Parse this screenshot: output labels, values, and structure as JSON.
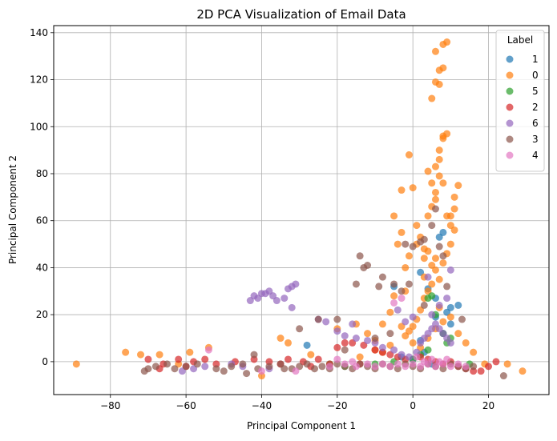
{
  "chart_data": {
    "type": "scatter",
    "title": "2D PCA Visualization of Email Data",
    "xlabel": "Principal Component 1",
    "ylabel": "Principal Component 2",
    "xlim": [
      -95,
      36
    ],
    "ylim": [
      -14,
      143
    ],
    "xticks": [
      -80,
      -60,
      -40,
      -20,
      0,
      20
    ],
    "yticks": [
      0,
      20,
      40,
      60,
      80,
      100,
      120,
      140
    ],
    "xtick_labels": [
      "−80",
      "−60",
      "−40",
      "−20",
      "0",
      "20"
    ],
    "ytick_labels": [
      "0",
      "20",
      "40",
      "60",
      "80",
      "100",
      "120",
      "140"
    ],
    "grid": true,
    "legend_title": "Label",
    "legend_position": "upper right",
    "series": [
      {
        "name": "1",
        "color": "#1f77b4",
        "points": [
          [
            -28,
            7
          ],
          [
            -5,
            32
          ],
          [
            2,
            38
          ],
          [
            4,
            31
          ],
          [
            7,
            53
          ],
          [
            8,
            55
          ],
          [
            6,
            19
          ],
          [
            9,
            21
          ],
          [
            10,
            23
          ],
          [
            12,
            24
          ],
          [
            -3,
            2
          ],
          [
            0,
            1
          ],
          [
            3,
            4
          ],
          [
            5,
            -1
          ],
          [
            2,
            9
          ],
          [
            8,
            12
          ],
          [
            10,
            16
          ],
          [
            6,
            27
          ]
        ]
      },
      {
        "name": "0",
        "color": "#ff7f0e",
        "points": [
          [
            -89,
            -1
          ],
          [
            -76,
            4
          ],
          [
            -72,
            3
          ],
          [
            -67,
            3
          ],
          [
            -54,
            6
          ],
          [
            -35,
            10
          ],
          [
            -33,
            8
          ],
          [
            -27,
            3
          ],
          [
            -20,
            14
          ],
          [
            -15,
            16
          ],
          [
            -12,
            12
          ],
          [
            -10,
            9
          ],
          [
            -8,
            16
          ],
          [
            -6,
            21
          ],
          [
            -5,
            28
          ],
          [
            -4,
            50
          ],
          [
            -3,
            55
          ],
          [
            -2,
            40
          ],
          [
            -1,
            45
          ],
          [
            -5,
            62
          ],
          [
            -3,
            73
          ],
          [
            -1,
            88
          ],
          [
            0,
            74
          ],
          [
            1,
            58
          ],
          [
            1,
            50
          ],
          [
            2,
            53
          ],
          [
            3,
            44
          ],
          [
            3,
            48
          ],
          [
            4,
            47
          ],
          [
            4,
            62
          ],
          [
            5,
            66
          ],
          [
            6,
            69
          ],
          [
            6,
            72
          ],
          [
            5,
            76
          ],
          [
            4,
            81
          ],
          [
            6,
            83
          ],
          [
            7,
            86
          ],
          [
            7,
            90
          ],
          [
            8,
            95
          ],
          [
            8,
            96
          ],
          [
            9,
            97
          ],
          [
            5,
            112
          ],
          [
            6,
            119
          ],
          [
            7,
            118
          ],
          [
            7,
            124
          ],
          [
            8,
            125
          ],
          [
            8,
            135
          ],
          [
            9,
            136
          ],
          [
            6,
            132
          ],
          [
            5,
            41
          ],
          [
            6,
            39
          ],
          [
            7,
            35
          ],
          [
            8,
            42
          ],
          [
            9,
            46
          ],
          [
            10,
            50
          ],
          [
            11,
            56
          ],
          [
            10,
            58
          ],
          [
            9,
            62
          ],
          [
            11,
            65
          ],
          [
            12,
            75
          ],
          [
            11,
            70
          ],
          [
            8,
            76
          ],
          [
            7,
            79
          ],
          [
            10,
            62
          ],
          [
            5,
            33
          ],
          [
            4,
            30
          ],
          [
            3,
            27
          ],
          [
            2,
            22
          ],
          [
            1,
            18
          ],
          [
            0,
            15
          ],
          [
            -1,
            13
          ],
          [
            -2,
            11
          ],
          [
            0,
            8
          ],
          [
            2,
            6
          ],
          [
            4,
            10
          ],
          [
            6,
            14
          ],
          [
            8,
            17
          ],
          [
            10,
            19
          ],
          [
            12,
            12
          ],
          [
            14,
            8
          ],
          [
            16,
            4
          ],
          [
            -2,
            30
          ],
          [
            -8,
            4
          ],
          [
            -14,
            2
          ],
          [
            19,
            -1
          ],
          [
            25,
            -1
          ],
          [
            29,
            -4
          ],
          [
            -59,
            4
          ],
          [
            -62,
            -1
          ],
          [
            -40,
            -6
          ],
          [
            -10,
            5
          ],
          [
            -6,
            7
          ],
          [
            3,
            36
          ],
          [
            6,
            44
          ],
          [
            -3,
            15
          ],
          [
            7,
            23
          ]
        ]
      },
      {
        "name": "5",
        "color": "#2ca02c",
        "points": [
          [
            -22,
            -1
          ],
          [
            -18,
            -2
          ],
          [
            -10,
            -1
          ],
          [
            0,
            1
          ],
          [
            2,
            3
          ],
          [
            4,
            27
          ],
          [
            5,
            28
          ],
          [
            6,
            20
          ],
          [
            8,
            12
          ],
          [
            9,
            8
          ],
          [
            10,
            10
          ],
          [
            4,
            5
          ],
          [
            -5,
            0
          ],
          [
            15,
            -1
          ]
        ]
      },
      {
        "name": "2",
        "color": "#d62728",
        "points": [
          [
            -70,
            1
          ],
          [
            -66,
            -1
          ],
          [
            -62,
            1
          ],
          [
            -58,
            0
          ],
          [
            -55,
            1
          ],
          [
            -52,
            -1
          ],
          [
            -47,
            0
          ],
          [
            -42,
            1
          ],
          [
            -38,
            0
          ],
          [
            -33,
            1
          ],
          [
            -29,
            0
          ],
          [
            -25,
            1
          ],
          [
            -22,
            -1
          ],
          [
            -20,
            6
          ],
          [
            -18,
            8
          ],
          [
            -16,
            8
          ],
          [
            -13,
            7
          ],
          [
            -10,
            5
          ],
          [
            -8,
            4
          ],
          [
            -6,
            3
          ],
          [
            -4,
            2
          ],
          [
            -2,
            1
          ],
          [
            2,
            2
          ],
          [
            4,
            1
          ],
          [
            6,
            0
          ],
          [
            8,
            -1
          ],
          [
            10,
            0
          ],
          [
            12,
            -2
          ],
          [
            14,
            -3
          ],
          [
            16,
            -4
          ],
          [
            18,
            -4
          ],
          [
            20,
            -2
          ],
          [
            22,
            0
          ],
          [
            -60,
            -2
          ],
          [
            -35,
            -1
          ],
          [
            -27,
            -2
          ],
          [
            -14,
            -1
          ],
          [
            -67,
            -3
          ]
        ]
      },
      {
        "name": "6",
        "color": "#9467bd",
        "points": [
          [
            -61,
            -4
          ],
          [
            -58,
            -3
          ],
          [
            -55,
            -2
          ],
          [
            -43,
            26
          ],
          [
            -42,
            28
          ],
          [
            -41,
            27
          ],
          [
            -40,
            29
          ],
          [
            -39,
            29
          ],
          [
            -38,
            30
          ],
          [
            -37,
            28
          ],
          [
            -36,
            26
          ],
          [
            -34,
            27
          ],
          [
            -33,
            31
          ],
          [
            -32,
            32
          ],
          [
            -31,
            33
          ],
          [
            -32,
            23
          ],
          [
            -25,
            18
          ],
          [
            -23,
            17
          ],
          [
            -20,
            13
          ],
          [
            -18,
            11
          ],
          [
            -15,
            10
          ],
          [
            -12,
            9
          ],
          [
            -10,
            8
          ],
          [
            -8,
            6
          ],
          [
            -5,
            5
          ],
          [
            -3,
            3
          ],
          [
            -1,
            2
          ],
          [
            1,
            4
          ],
          [
            2,
            8
          ],
          [
            3,
            10
          ],
          [
            4,
            12
          ],
          [
            5,
            14
          ],
          [
            6,
            16
          ],
          [
            7,
            14
          ],
          [
            8,
            12
          ],
          [
            9,
            10
          ],
          [
            10,
            8
          ],
          [
            -4,
            22
          ],
          [
            -2,
            17
          ],
          [
            0,
            19
          ],
          [
            5,
            20
          ],
          [
            7,
            24
          ],
          [
            9,
            27
          ],
          [
            10,
            39
          ],
          [
            4,
            36
          ],
          [
            -16,
            16
          ],
          [
            -48,
            -1
          ],
          [
            -45,
            -2
          ],
          [
            -38,
            -3
          ]
        ]
      },
      {
        "name": "3",
        "color": "#8c564b",
        "points": [
          [
            -70,
            -3
          ],
          [
            -68,
            -2
          ],
          [
            -65,
            -1
          ],
          [
            -63,
            -3
          ],
          [
            -60,
            -2
          ],
          [
            -57,
            -1
          ],
          [
            -52,
            -3
          ],
          [
            -48,
            -2
          ],
          [
            -45,
            -1
          ],
          [
            -41,
            -3
          ],
          [
            -38,
            -2
          ],
          [
            -35,
            -1
          ],
          [
            -32,
            -3
          ],
          [
            -30,
            -2
          ],
          [
            -28,
            -1
          ],
          [
            -26,
            -3
          ],
          [
            -24,
            -2
          ],
          [
            -22,
            -3
          ],
          [
            -20,
            -1
          ],
          [
            -18,
            -2
          ],
          [
            -16,
            -3
          ],
          [
            -14,
            -1
          ],
          [
            -12,
            -2
          ],
          [
            -10,
            -3
          ],
          [
            -8,
            -1
          ],
          [
            -6,
            -2
          ],
          [
            -4,
            -3
          ],
          [
            -2,
            -1
          ],
          [
            0,
            -2
          ],
          [
            2,
            -3
          ],
          [
            4,
            -1
          ],
          [
            6,
            -2
          ],
          [
            8,
            -3
          ],
          [
            10,
            -1
          ],
          [
            12,
            -2
          ],
          [
            14,
            -3
          ],
          [
            16,
            -2
          ],
          [
            -14,
            45
          ],
          [
            -13,
            40
          ],
          [
            -12,
            41
          ],
          [
            -9,
            32
          ],
          [
            -8,
            36
          ],
          [
            -5,
            33
          ],
          [
            -3,
            30
          ],
          [
            -1,
            33
          ],
          [
            -2,
            50
          ],
          [
            0,
            49
          ],
          [
            2,
            51
          ],
          [
            3,
            52
          ],
          [
            5,
            58
          ],
          [
            6,
            65
          ],
          [
            7,
            49
          ],
          [
            9,
            32
          ],
          [
            -15,
            33
          ],
          [
            -20,
            18
          ],
          [
            -25,
            18
          ],
          [
            -30,
            14
          ],
          [
            -42,
            3
          ],
          [
            -71,
            -4
          ],
          [
            24,
            -6
          ],
          [
            13,
            18
          ],
          [
            8,
            45
          ],
          [
            3,
            24
          ],
          [
            -6,
            12
          ],
          [
            -10,
            10
          ],
          [
            -18,
            5
          ],
          [
            -34,
            -3
          ],
          [
            -50,
            -4
          ],
          [
            -44,
            -5
          ]
        ]
      },
      {
        "name": "4",
        "color": "#e377c2",
        "points": [
          [
            -54,
            5
          ],
          [
            -40,
            -4
          ],
          [
            -31,
            -4
          ],
          [
            -22,
            -2
          ],
          [
            -18,
            -1
          ],
          [
            -15,
            -2
          ],
          [
            -12,
            -1
          ],
          [
            -10,
            -2
          ],
          [
            -8,
            -1
          ],
          [
            -6,
            -2
          ],
          [
            -4,
            -1
          ],
          [
            -2,
            -2
          ],
          [
            0,
            -1
          ],
          [
            2,
            -2
          ],
          [
            4,
            -1
          ],
          [
            6,
            -2
          ],
          [
            8,
            -1
          ],
          [
            10,
            -2
          ],
          [
            12,
            -1
          ],
          [
            14,
            -2
          ],
          [
            -5,
            25
          ],
          [
            -3,
            27
          ],
          [
            5,
            1
          ],
          [
            7,
            0
          ],
          [
            9,
            1
          ],
          [
            -20,
            1
          ],
          [
            -16,
            0
          ],
          [
            1,
            2
          ],
          [
            3,
            0
          ]
        ]
      }
    ]
  }
}
